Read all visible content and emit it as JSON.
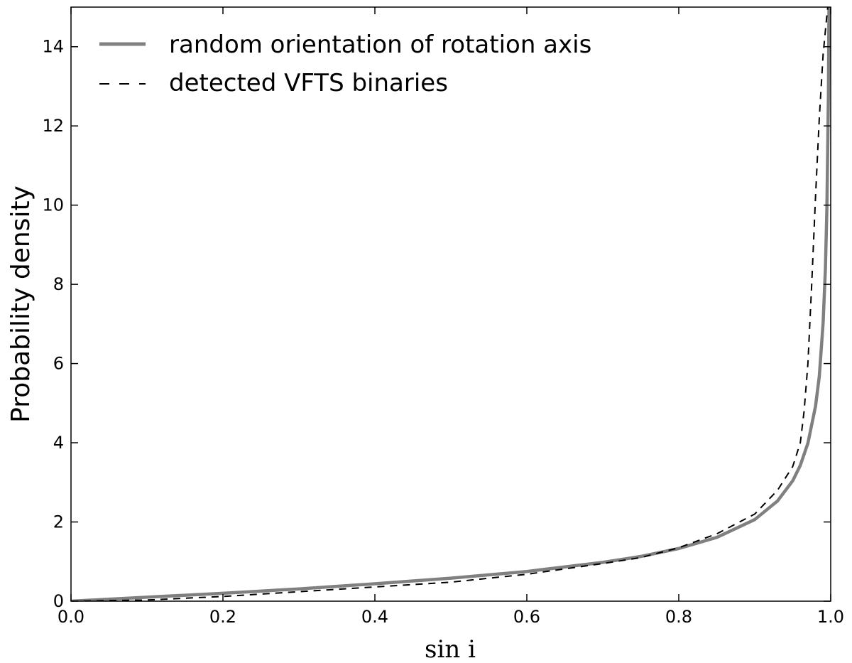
{
  "chart_data": {
    "type": "line",
    "xlabel": "sin i",
    "ylabel": "Probability density",
    "xlim": [
      0.0,
      1.0
    ],
    "ylim": [
      0,
      15
    ],
    "x_ticks": [
      "0.0",
      "0.2",
      "0.4",
      "0.6",
      "0.8",
      "1.0"
    ],
    "y_ticks": [
      "0",
      "2",
      "4",
      "6",
      "8",
      "10",
      "12",
      "14"
    ],
    "grid": false,
    "legend_position": "top-left",
    "series": [
      {
        "name": "random orientation of rotation axis",
        "color": "#808080",
        "style": "solid",
        "x": [
          0.0,
          0.1,
          0.2,
          0.3,
          0.4,
          0.5,
          0.6,
          0.7,
          0.75,
          0.8,
          0.85,
          0.9,
          0.93,
          0.95,
          0.96,
          0.97,
          0.98,
          0.985,
          0.99,
          0.993,
          0.995,
          0.997,
          0.998,
          0.999
        ],
        "y": [
          0.0,
          0.1,
          0.2,
          0.31,
          0.44,
          0.58,
          0.75,
          0.98,
          1.13,
          1.33,
          1.61,
          2.06,
          2.53,
          3.04,
          3.43,
          3.99,
          4.92,
          5.68,
          7.02,
          8.38,
          9.93,
          12.8,
          15.8,
          22.3
        ]
      },
      {
        "name": "detected VFTS binaries",
        "color": "#000000",
        "style": "dashed",
        "x": [
          0.0,
          0.1,
          0.2,
          0.3,
          0.4,
          0.5,
          0.6,
          0.7,
          0.75,
          0.8,
          0.85,
          0.9,
          0.93,
          0.95,
          0.96,
          0.965,
          0.97,
          0.975,
          0.98,
          0.985,
          0.99,
          0.995,
          0.999
        ],
        "y": [
          0.0,
          0.03,
          0.12,
          0.24,
          0.36,
          0.48,
          0.68,
          0.95,
          1.1,
          1.35,
          1.7,
          2.2,
          2.8,
          3.4,
          4.0,
          4.8,
          6.0,
          8.0,
          10.2,
          12.2,
          13.8,
          14.8,
          15.5
        ]
      }
    ]
  }
}
